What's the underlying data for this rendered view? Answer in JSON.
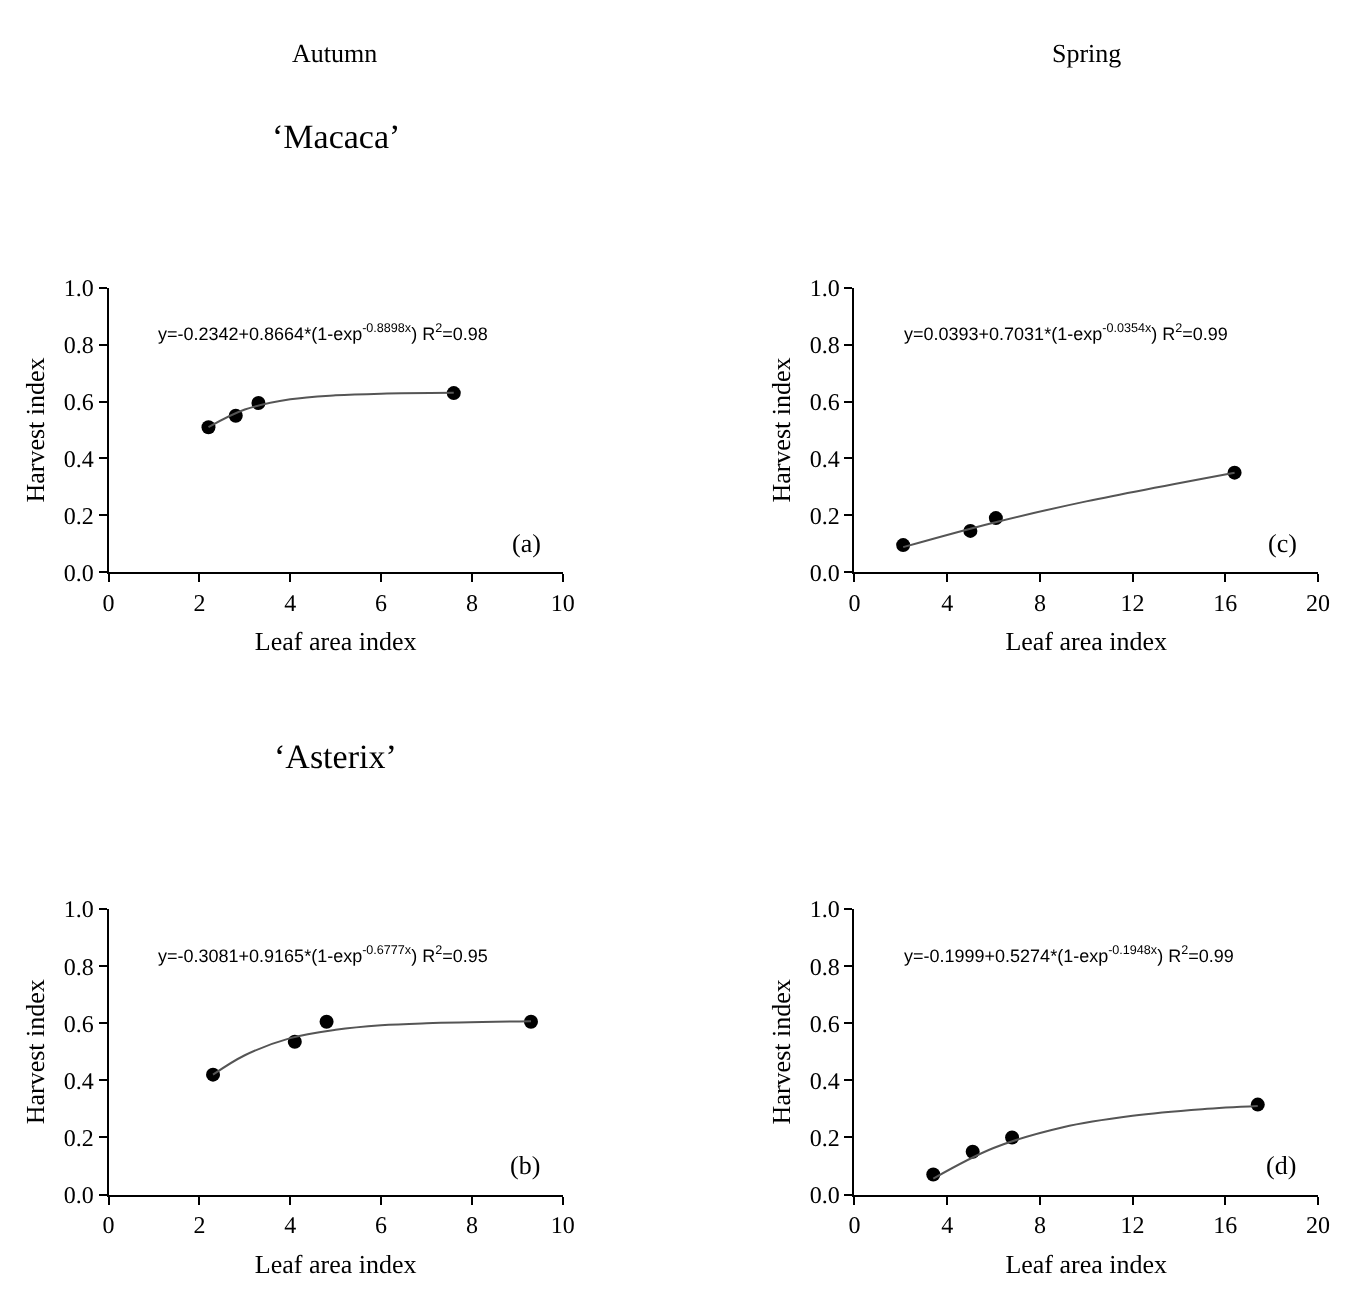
{
  "chart_data": [
    {
      "type": "scatter",
      "title": "‘Macaca’",
      "xlabel": "Leaf area index",
      "ylabel": "Harvest index",
      "xlim": [
        0,
        10
      ],
      "xticks": [
        0,
        2,
        4,
        6,
        8,
        10
      ],
      "ylim": [
        0,
        1
      ],
      "yticks": [
        {
          "value": 0,
          "label": "0.0"
        },
        {
          "value": 0.2,
          "label": "0.2"
        },
        {
          "value": 0.4,
          "label": "0.4"
        },
        {
          "value": 0.6,
          "label": "0.6"
        },
        {
          "value": 0.8,
          "label": "0.8"
        },
        {
          "value": 1,
          "label": "1.0"
        }
      ],
      "annotations": [
        "y=-0.2342+0.8664*(1-exp$^{-0.8898x}$) R$^{2}$=0.98",
        "(a)",
        "Autumn"
      ],
      "series": [
        {
          "color": "#000000",
          "marker": "circle",
          "x": [
            2.2,
            2.8,
            3.3,
            7.6
          ],
          "values": [
            0.51,
            0.55,
            0.595,
            0.63
          ]
        },
        {
          "type": "line",
          "color": "#555555",
          "marker": "none",
          "line_style": "solid",
          "x": [
            2.2,
            3,
            4,
            5,
            6,
            7.6
          ],
          "values": [
            0.51,
            0.572,
            0.608,
            0.622,
            0.628,
            0.631
          ]
        }
      ]
    },
    {
      "type": "scatter",
      "xlabel": "Leaf area index",
      "ylabel": "Harvest index",
      "xlim": [
        0,
        20
      ],
      "xticks": [
        0,
        4,
        8,
        12,
        16,
        20
      ],
      "ylim": [
        0,
        1
      ],
      "yticks": [
        {
          "value": 0,
          "label": "0.0"
        },
        {
          "value": 0.2,
          "label": "0.2"
        },
        {
          "value": 0.4,
          "label": "0.4"
        },
        {
          "value": 0.6,
          "label": "0.6"
        },
        {
          "value": 0.8,
          "label": "0.8"
        },
        {
          "value": 1,
          "label": "1.0"
        }
      ],
      "annotations": [
        "y=0.0393+0.7031*(1-exp$^{-0.0354x}$) R$^{2}$=0.99",
        "(c)",
        "Spring"
      ],
      "series": [
        {
          "color": "#000000",
          "marker": "circle",
          "x": [
            2.1,
            5.0,
            6.1,
            16.4
          ],
          "values": [
            0.095,
            0.145,
            0.19,
            0.35
          ]
        },
        {
          "type": "line",
          "color": "#555555",
          "marker": "none",
          "line_style": "solid",
          "x": [
            2.1,
            6,
            10,
            16.4
          ],
          "values": [
            0.088,
            0.174,
            0.249,
            0.35
          ]
        }
      ]
    },
    {
      "type": "scatter",
      "title": "‘Asterix’",
      "xlabel": "Leaf area index",
      "ylabel": "Harvest index",
      "xlim": [
        0,
        10
      ],
      "xticks": [
        0,
        2,
        4,
        6,
        8,
        10
      ],
      "ylim": [
        0,
        1
      ],
      "yticks": [
        {
          "value": 0,
          "label": "0.0"
        },
        {
          "value": 0.2,
          "label": "0.2"
        },
        {
          "value": 0.4,
          "label": "0.4"
        },
        {
          "value": 0.6,
          "label": "0.6"
        },
        {
          "value": 0.8,
          "label": "0.8"
        },
        {
          "value": 1,
          "label": "1.0"
        }
      ],
      "annotations": [
        "y=-0.3081+0.9165*(1-exp$^{-0.6777x}$) R$^{2}$=0.95",
        "(b)"
      ],
      "series": [
        {
          "color": "#000000",
          "marker": "circle",
          "x": [
            2.3,
            4.1,
            4.8,
            9.3
          ],
          "values": [
            0.42,
            0.535,
            0.605,
            0.605
          ]
        },
        {
          "type": "line",
          "color": "#555555",
          "marker": "none",
          "line_style": "solid",
          "x": [
            2.3,
            3,
            4,
            5,
            6,
            7,
            9.3
          ],
          "values": [
            0.42,
            0.488,
            0.548,
            0.577,
            0.593,
            0.6,
            0.607
          ]
        }
      ]
    },
    {
      "type": "scatter",
      "xlabel": "Leaf area index",
      "ylabel": "Harvest index",
      "xlim": [
        0,
        20
      ],
      "xticks": [
        0,
        4,
        8,
        12,
        16,
        20
      ],
      "ylim": [
        0,
        1
      ],
      "yticks": [
        {
          "value": 0,
          "label": "0.0"
        },
        {
          "value": 0.2,
          "label": "0.2"
        },
        {
          "value": 0.4,
          "label": "0.4"
        },
        {
          "value": 0.6,
          "label": "0.6"
        },
        {
          "value": 0.8,
          "label": "0.8"
        },
        {
          "value": 1,
          "label": "1.0"
        }
      ],
      "annotations": [
        "y=-0.1999+0.5274*(1-exp$^{-0.1948x}$) R$^{2}$=0.99",
        "(d)"
      ],
      "series": [
        {
          "color": "#000000",
          "marker": "circle",
          "x": [
            3.4,
            5.1,
            6.8,
            17.4
          ],
          "values": [
            0.07,
            0.15,
            0.2,
            0.315
          ]
        },
        {
          "type": "line",
          "color": "#555555",
          "marker": "none",
          "line_style": "solid",
          "x": [
            3.4,
            6,
            9,
            12,
            15,
            17.4
          ],
          "values": [
            0.056,
            0.163,
            0.236,
            0.276,
            0.299,
            0.31
          ]
        }
      ]
    }
  ]
}
